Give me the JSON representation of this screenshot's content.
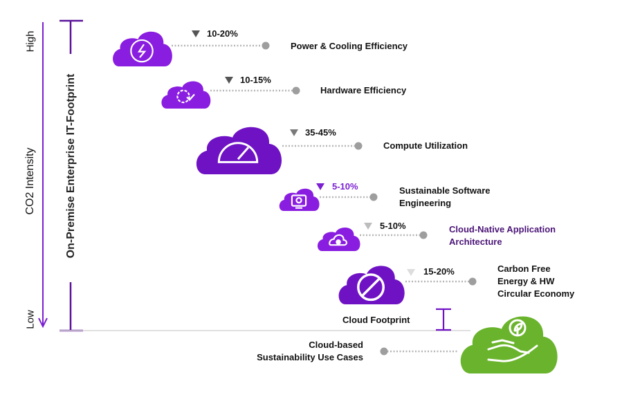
{
  "axis": {
    "co2_label": "CO2 Intensity",
    "high_label": "High",
    "low_label": "Low",
    "footprint_label": "On-Premise Enterprise IT-Footprint"
  },
  "levers": [
    {
      "reduction": "10-20%",
      "label": "Power & Cooling Efficiency",
      "icon": "power-icon",
      "color": "#111111",
      "triangle_color": "#555555"
    },
    {
      "reduction": "10-15%",
      "label": "Hardware Efficiency",
      "icon": "gear-check-icon",
      "color": "#111111",
      "triangle_color": "#555555"
    },
    {
      "reduction": "35-45%",
      "label": "Compute Utilization",
      "icon": "gauge-icon",
      "color": "#111111",
      "triangle_color": "#7a7a7a"
    },
    {
      "reduction": "5-10%",
      "label": "Sustainable Software\nEngineering",
      "icon": "monitor-bulb-icon",
      "color": "#111111",
      "triangle_color": "#7b1fd1",
      "reduction_color": "#7b1fd1"
    },
    {
      "reduction": "5-10%",
      "label": "Cloud-Native Application\nArchitecture",
      "icon": "cloud-gear-icon",
      "color": "#4b1577",
      "triangle_color": "#bdbdbd"
    },
    {
      "reduction": "15-20%",
      "label": "Carbon Free\nEnergy & HW\nCircular Economy",
      "icon": "prohibited-icon",
      "color": "#111111",
      "triangle_color": "#dddddd"
    }
  ],
  "cloud_footprint_label": "Cloud Footprint",
  "use_cases_label": "Cloud-based\nSustainability Use Cases",
  "colors": {
    "purple": "#8a1ee0",
    "purple_dark": "#6f12c4",
    "green": "#6ab42d",
    "dots": "#b5b5b5",
    "knob": "#9e9e9e"
  }
}
